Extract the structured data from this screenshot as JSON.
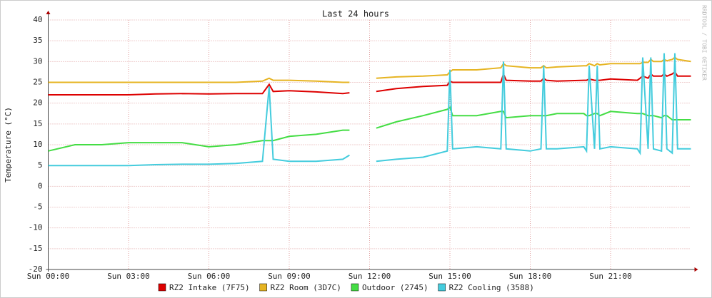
{
  "chart_data": {
    "type": "line",
    "title": "Last 24 hours",
    "y_label": "Temperature (°C)",
    "watermark": "RRDTOOL / TOBI OETIKER",
    "x": [
      0,
      1,
      2,
      3,
      4,
      5,
      6,
      7,
      8,
      8.25,
      8.4,
      9,
      10,
      11,
      11.25,
      11.75,
      12.25,
      13,
      14,
      14.9,
      15.0,
      15.1,
      16,
      16.9,
      17.0,
      17.1,
      18,
      18.4,
      18.5,
      18.6,
      19,
      20,
      20.1,
      20.2,
      20.4,
      20.5,
      20.6,
      21,
      22,
      22.1,
      22.2,
      22.4,
      22.5,
      22.6,
      22.9,
      23.0,
      23.1,
      23.3,
      23.4,
      23.5,
      24
    ],
    "xlim": [
      0,
      24
    ],
    "xticks": [
      {
        "value": 0,
        "label": "Sun 00:00"
      },
      {
        "value": 3,
        "label": "Sun 03:00"
      },
      {
        "value": 6,
        "label": "Sun 06:00"
      },
      {
        "value": 9,
        "label": "Sun 09:00"
      },
      {
        "value": 12,
        "label": "Sun 12:00"
      },
      {
        "value": 15,
        "label": "Sun 15:00"
      },
      {
        "value": 18,
        "label": "Sun 18:00"
      },
      {
        "value": 21,
        "label": "Sun 21:00"
      }
    ],
    "ylim": [
      -20,
      40
    ],
    "yticks": [
      -20,
      -15,
      -10,
      -5,
      0,
      5,
      10,
      15,
      20,
      25,
      30,
      35,
      40
    ],
    "grid": true,
    "series": [
      {
        "name": "RZ2 Intake (7F75)",
        "color": "#dd0000",
        "values": [
          22,
          22,
          22,
          22,
          22.2,
          22.3,
          22.2,
          22.3,
          22.3,
          24.5,
          22.8,
          23,
          22.7,
          22.3,
          22.5,
          null,
          22.8,
          23.5,
          24,
          24.3,
          25.3,
          25,
          25,
          25,
          27,
          25.5,
          25.3,
          25.3,
          26,
          25.5,
          25.3,
          25.5,
          25.5,
          25.8,
          25.5,
          25.5,
          25.5,
          25.8,
          25.5,
          26,
          26.5,
          26,
          27,
          26.5,
          26.5,
          27,
          26.5,
          27,
          27.5,
          26.5,
          26.5
        ]
      },
      {
        "name": "RZ2 Room (3D7C)",
        "color": "#e6b422",
        "values": [
          25,
          25,
          25,
          25,
          25,
          25,
          25,
          25,
          25.3,
          26,
          25.5,
          25.5,
          25.3,
          25,
          25,
          null,
          26,
          26.3,
          26.5,
          26.8,
          27.5,
          28,
          28,
          28.5,
          29.5,
          29,
          28.5,
          28.5,
          29,
          28.5,
          28.7,
          29,
          29,
          29.5,
          29,
          29.5,
          29.2,
          29.5,
          29.5,
          29.5,
          29.8,
          29.8,
          30.5,
          30,
          30,
          30.5,
          30.2,
          30.5,
          31,
          30.5,
          30
        ]
      },
      {
        "name": "Outdoor (2745)",
        "color": "#44dd44",
        "values": [
          8.5,
          10,
          10,
          10.5,
          10.5,
          10.5,
          9.5,
          10,
          11,
          11,
          11,
          12,
          12.5,
          13.5,
          13.5,
          null,
          14,
          15.5,
          17,
          18.5,
          19,
          17,
          17,
          18,
          18,
          16.5,
          17,
          17,
          17,
          17,
          17.5,
          17.5,
          17,
          17,
          17.5,
          17.5,
          17,
          18,
          17.5,
          17.5,
          17.5,
          17,
          17,
          17,
          16.5,
          17,
          17,
          16,
          16,
          16,
          16
        ]
      },
      {
        "name": "RZ2 Cooling (3588)",
        "color": "#44ccdd",
        "values": [
          5,
          5,
          5,
          5,
          5.2,
          5.3,
          5.3,
          5.5,
          6,
          24,
          6.5,
          6,
          6,
          6.5,
          7.5,
          null,
          6,
          6.5,
          7,
          8.5,
          28,
          9,
          9.5,
          9,
          30,
          9,
          8.5,
          9,
          29,
          9,
          9,
          9.5,
          8.5,
          29,
          9,
          29,
          9,
          9.5,
          9,
          8,
          31,
          9,
          31,
          9,
          8.5,
          32,
          9,
          8,
          32,
          9,
          9
        ]
      }
    ]
  }
}
